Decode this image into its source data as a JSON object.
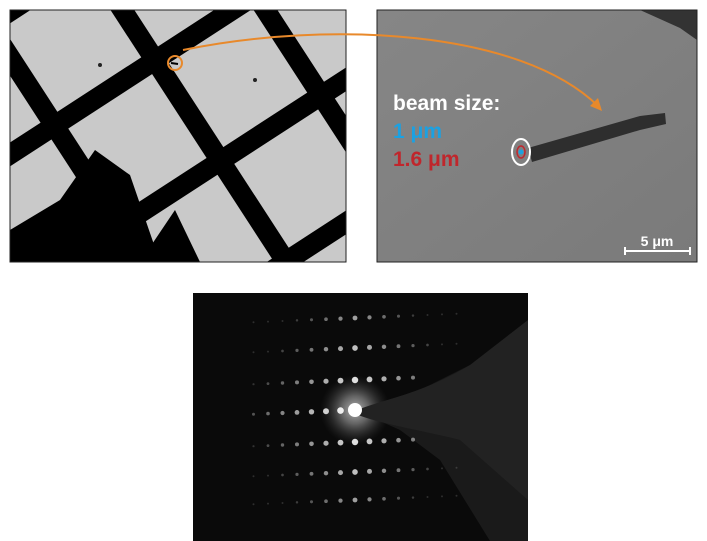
{
  "annotation": {
    "heading": "beam size:",
    "beam_small": "1 μm",
    "beam_large": "1.6 μm"
  },
  "scale_bar": "5 μm"
}
